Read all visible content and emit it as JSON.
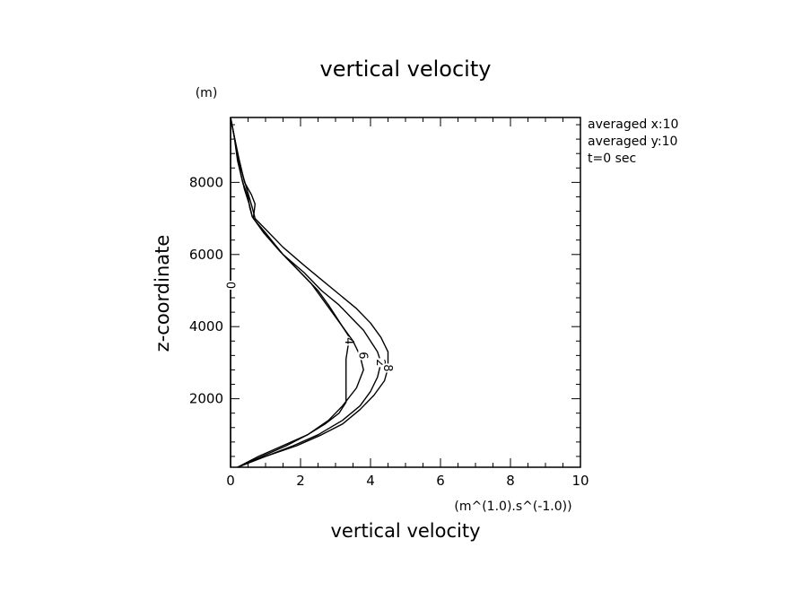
{
  "chart_data": {
    "type": "line",
    "title": "vertical velocity",
    "xlabel": "vertical velocity",
    "x_units": "(m^(1.0).s^(-1.0))",
    "ylabel": "z-coordinate",
    "y_units": "(m)",
    "xlim": [
      0,
      10
    ],
    "ylim": [
      100,
      9800
    ],
    "x_ticks": [
      0,
      2,
      4,
      6,
      8,
      10
    ],
    "x_tick_labels": [
      "0",
      "2",
      "4",
      "6",
      "8",
      "10"
    ],
    "y_ticks": [
      2000,
      4000,
      6000,
      8000
    ],
    "y_tick_labels": [
      "2000",
      "4000",
      "6000",
      "8000"
    ],
    "grid": false,
    "info_text": [
      "averaged  x:10",
      "averaged  y:10",
      "t=0 sec"
    ],
    "series": [
      {
        "name": "0",
        "label_at": [
          0.0,
          5150
        ],
        "points": [
          [
            0.0,
            9800
          ],
          [
            0.0,
            100
          ]
        ]
      },
      {
        "name": "4",
        "label_at": [
          3.4,
          3600
        ],
        "points": [
          [
            0.2,
            100
          ],
          [
            0.9,
            400
          ],
          [
            1.6,
            700
          ],
          [
            2.2,
            1000
          ],
          [
            2.7,
            1300
          ],
          [
            3.1,
            1600
          ],
          [
            3.3,
            1900
          ],
          [
            3.3,
            2200
          ],
          [
            3.3,
            2500
          ],
          [
            3.3,
            2800
          ],
          [
            3.3,
            3100
          ],
          [
            3.35,
            3400
          ],
          [
            3.4,
            3700
          ],
          [
            3.2,
            4000
          ],
          [
            3.0,
            4300
          ],
          [
            2.8,
            4600
          ],
          [
            2.5,
            5000
          ],
          [
            2.0,
            5500
          ],
          [
            1.5,
            6000
          ],
          [
            1.0,
            6600
          ],
          [
            0.65,
            7000
          ],
          [
            0.7,
            7400
          ],
          [
            0.6,
            7650
          ],
          [
            0.4,
            8000
          ],
          [
            0.25,
            8600
          ],
          [
            0.1,
            9300
          ],
          [
            0.0,
            9800
          ]
        ]
      },
      {
        "name": "6",
        "label_at": [
          3.8,
          3200
        ],
        "points": [
          [
            0.2,
            100
          ],
          [
            0.8,
            400
          ],
          [
            1.5,
            700
          ],
          [
            2.2,
            1000
          ],
          [
            2.8,
            1400
          ],
          [
            3.2,
            1800
          ],
          [
            3.6,
            2300
          ],
          [
            3.8,
            2800
          ],
          [
            3.7,
            3200
          ],
          [
            3.5,
            3600
          ],
          [
            3.2,
            4000
          ],
          [
            2.9,
            4400
          ],
          [
            2.6,
            4800
          ],
          [
            2.3,
            5200
          ],
          [
            1.9,
            5600
          ],
          [
            1.4,
            6100
          ],
          [
            0.95,
            6600
          ],
          [
            0.62,
            7050
          ],
          [
            0.55,
            7300
          ],
          [
            0.5,
            7600
          ],
          [
            0.35,
            8000
          ],
          [
            0.2,
            8600
          ],
          [
            0.1,
            9300
          ],
          [
            0.0,
            9800
          ]
        ]
      },
      {
        "name": "2",
        "label_at": [
          4.3,
          3000
        ],
        "points": [
          [
            0.2,
            100
          ],
          [
            1.0,
            400
          ],
          [
            1.8,
            700
          ],
          [
            2.5,
            1000
          ],
          [
            3.2,
            1400
          ],
          [
            3.7,
            1800
          ],
          [
            4.0,
            2200
          ],
          [
            4.2,
            2600
          ],
          [
            4.3,
            3000
          ],
          [
            4.2,
            3300
          ],
          [
            4.0,
            3600
          ],
          [
            3.8,
            3900
          ],
          [
            3.5,
            4200
          ],
          [
            3.1,
            4600
          ],
          [
            2.6,
            5000
          ],
          [
            2.1,
            5500
          ],
          [
            1.5,
            6000
          ],
          [
            0.95,
            6600
          ],
          [
            0.62,
            7050
          ],
          [
            0.55,
            7350
          ],
          [
            0.4,
            7800
          ],
          [
            0.3,
            8200
          ],
          [
            0.2,
            8800
          ],
          [
            0.1,
            9300
          ],
          [
            0.0,
            9800
          ]
        ]
      },
      {
        "name": "8",
        "label_at": [
          4.5,
          2850
        ],
        "points": [
          [
            0.2,
            100
          ],
          [
            1.0,
            400
          ],
          [
            1.9,
            700
          ],
          [
            2.6,
            1000
          ],
          [
            3.2,
            1300
          ],
          [
            3.7,
            1700
          ],
          [
            4.1,
            2100
          ],
          [
            4.4,
            2500
          ],
          [
            4.5,
            2850
          ],
          [
            4.5,
            3300
          ],
          [
            4.3,
            3700
          ],
          [
            4.0,
            4100
          ],
          [
            3.6,
            4500
          ],
          [
            3.1,
            4900
          ],
          [
            2.6,
            5300
          ],
          [
            2.1,
            5700
          ],
          [
            1.5,
            6200
          ],
          [
            1.0,
            6700
          ],
          [
            0.7,
            7000
          ],
          [
            0.62,
            7300
          ],
          [
            0.5,
            7700
          ],
          [
            0.35,
            8200
          ],
          [
            0.2,
            8800
          ],
          [
            0.1,
            9300
          ],
          [
            0.0,
            9800
          ]
        ]
      }
    ]
  }
}
